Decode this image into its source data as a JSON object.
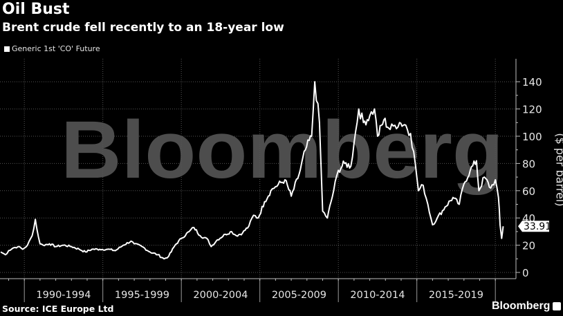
{
  "header": {
    "title": "Oil Bust",
    "subtitle": "Brent crude fell recently to an 18-year low"
  },
  "legend": {
    "items": [
      {
        "label": "Generic 1st 'CO' Future",
        "color": "#ffffff"
      }
    ]
  },
  "footer": {
    "source": "Source: ICE Europe Ltd",
    "brand": "Bloomberg"
  },
  "watermark": "Bloomberg",
  "last_value_label": "33.91",
  "colors": {
    "background": "#000000",
    "line": "#ffffff",
    "grid": "#3a3a3a",
    "watermark": "#4d4d4d",
    "axis": "#bfbfbf"
  },
  "chart_data": {
    "type": "line",
    "title": "Oil Bust",
    "subtitle": "Brent crude fell recently to an 18-year low",
    "xlabel": "",
    "ylabel": "($ per barrel)",
    "ylim": [
      0,
      150
    ],
    "yticks": [
      0,
      20,
      40,
      60,
      80,
      100,
      120,
      140
    ],
    "xtick_labels": [
      "1990-1994",
      "1995-1999",
      "2000-2004",
      "2005-2009",
      "2010-2014",
      "2015-2019"
    ],
    "grid": true,
    "legend_position": "top-left",
    "last_value": 33.91,
    "series": [
      {
        "name": "Generic 1st 'CO' Future",
        "x": [
          1988.5,
          1988.8,
          1989.0,
          1989.3,
          1989.6,
          1989.9,
          1990.2,
          1990.5,
          1990.7,
          1990.8,
          1991.0,
          1991.2,
          1991.6,
          1992.0,
          1992.5,
          1993.0,
          1993.5,
          1993.9,
          1994.3,
          1994.8,
          1995.3,
          1995.8,
          1996.3,
          1996.8,
          1997.0,
          1997.5,
          1998.0,
          1998.5,
          1998.9,
          1999.2,
          1999.6,
          2000.0,
          2000.5,
          2000.8,
          2001.2,
          2001.7,
          2001.9,
          2002.3,
          2002.8,
          2003.2,
          2003.5,
          2003.9,
          2004.3,
          2004.6,
          2004.9,
          2005.3,
          2005.7,
          2006.0,
          2006.6,
          2007.0,
          2007.5,
          2007.9,
          2008.3,
          2008.5,
          2008.8,
          2009.0,
          2009.3,
          2009.7,
          2010.0,
          2010.4,
          2010.8,
          2011.0,
          2011.3,
          2011.6,
          2012.0,
          2012.3,
          2012.5,
          2012.9,
          2013.3,
          2013.6,
          2013.9,
          2014.3,
          2014.6,
          2014.9,
          2015.1,
          2015.4,
          2015.7,
          2016.0,
          2016.3,
          2016.8,
          2017.3,
          2017.7,
          2018.0,
          2018.4,
          2018.8,
          2018.95,
          2019.3,
          2019.7,
          2020.0,
          2020.2,
          2020.3,
          2020.4,
          2020.5
        ],
        "y": [
          15,
          13,
          16,
          18,
          19,
          17,
          20,
          27,
          39,
          32,
          21,
          20,
          21,
          19,
          20,
          19,
          17,
          15,
          17,
          17,
          17,
          16,
          20,
          23,
          21,
          19,
          15,
          13,
          10,
          12,
          20,
          25,
          30,
          33,
          27,
          24,
          19,
          24,
          28,
          30,
          27,
          29,
          34,
          42,
          40,
          52,
          60,
          63,
          68,
          56,
          72,
          90,
          100,
          140,
          110,
          45,
          40,
          60,
          75,
          80,
          78,
          95,
          120,
          110,
          115,
          120,
          100,
          112,
          105,
          108,
          110,
          108,
          102,
          80,
          60,
          64,
          50,
          35,
          40,
          48,
          55,
          50,
          65,
          75,
          82,
          60,
          70,
          62,
          68,
          55,
          35,
          25,
          33.91
        ]
      }
    ]
  }
}
